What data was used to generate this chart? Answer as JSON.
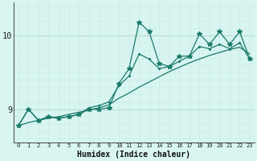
{
  "xlabel": "Humidex (Indice chaleur)",
  "x_data": [
    0,
    1,
    2,
    3,
    4,
    5,
    6,
    7,
    8,
    9,
    10,
    11,
    12,
    13,
    14,
    15,
    16,
    17,
    18,
    19,
    20,
    21,
    22,
    23
  ],
  "y_jagged": [
    8.78,
    9.0,
    8.85,
    8.9,
    8.88,
    8.9,
    8.93,
    9.0,
    9.0,
    9.02,
    9.35,
    9.55,
    10.18,
    10.05,
    9.62,
    9.58,
    9.72,
    9.72,
    10.02,
    9.88,
    10.05,
    9.88,
    10.05,
    9.68
  ],
  "y_mid": [
    8.78,
    9.0,
    8.85,
    8.9,
    8.88,
    8.9,
    8.93,
    9.02,
    9.05,
    9.1,
    9.32,
    9.45,
    9.75,
    9.68,
    9.55,
    9.58,
    9.65,
    9.72,
    9.85,
    9.82,
    9.88,
    9.82,
    9.9,
    9.68
  ],
  "y_trend": [
    8.78,
    8.82,
    8.85,
    8.88,
    8.9,
    8.93,
    8.96,
    8.99,
    9.02,
    9.06,
    9.15,
    9.22,
    9.3,
    9.37,
    9.44,
    9.51,
    9.57,
    9.63,
    9.68,
    9.73,
    9.77,
    9.81,
    9.84,
    9.75
  ],
  "line_color": "#1a7a6a",
  "bg_color": "#d8f5f0",
  "grid_color_minor": "#c8ecec",
  "grid_color_major_y": "#b8ddd8",
  "grid_color_major_x": "#c8ecec",
  "yticks": [
    9,
    10
  ],
  "ylim": [
    8.55,
    10.45
  ],
  "xlim": [
    -0.5,
    23.5
  ]
}
